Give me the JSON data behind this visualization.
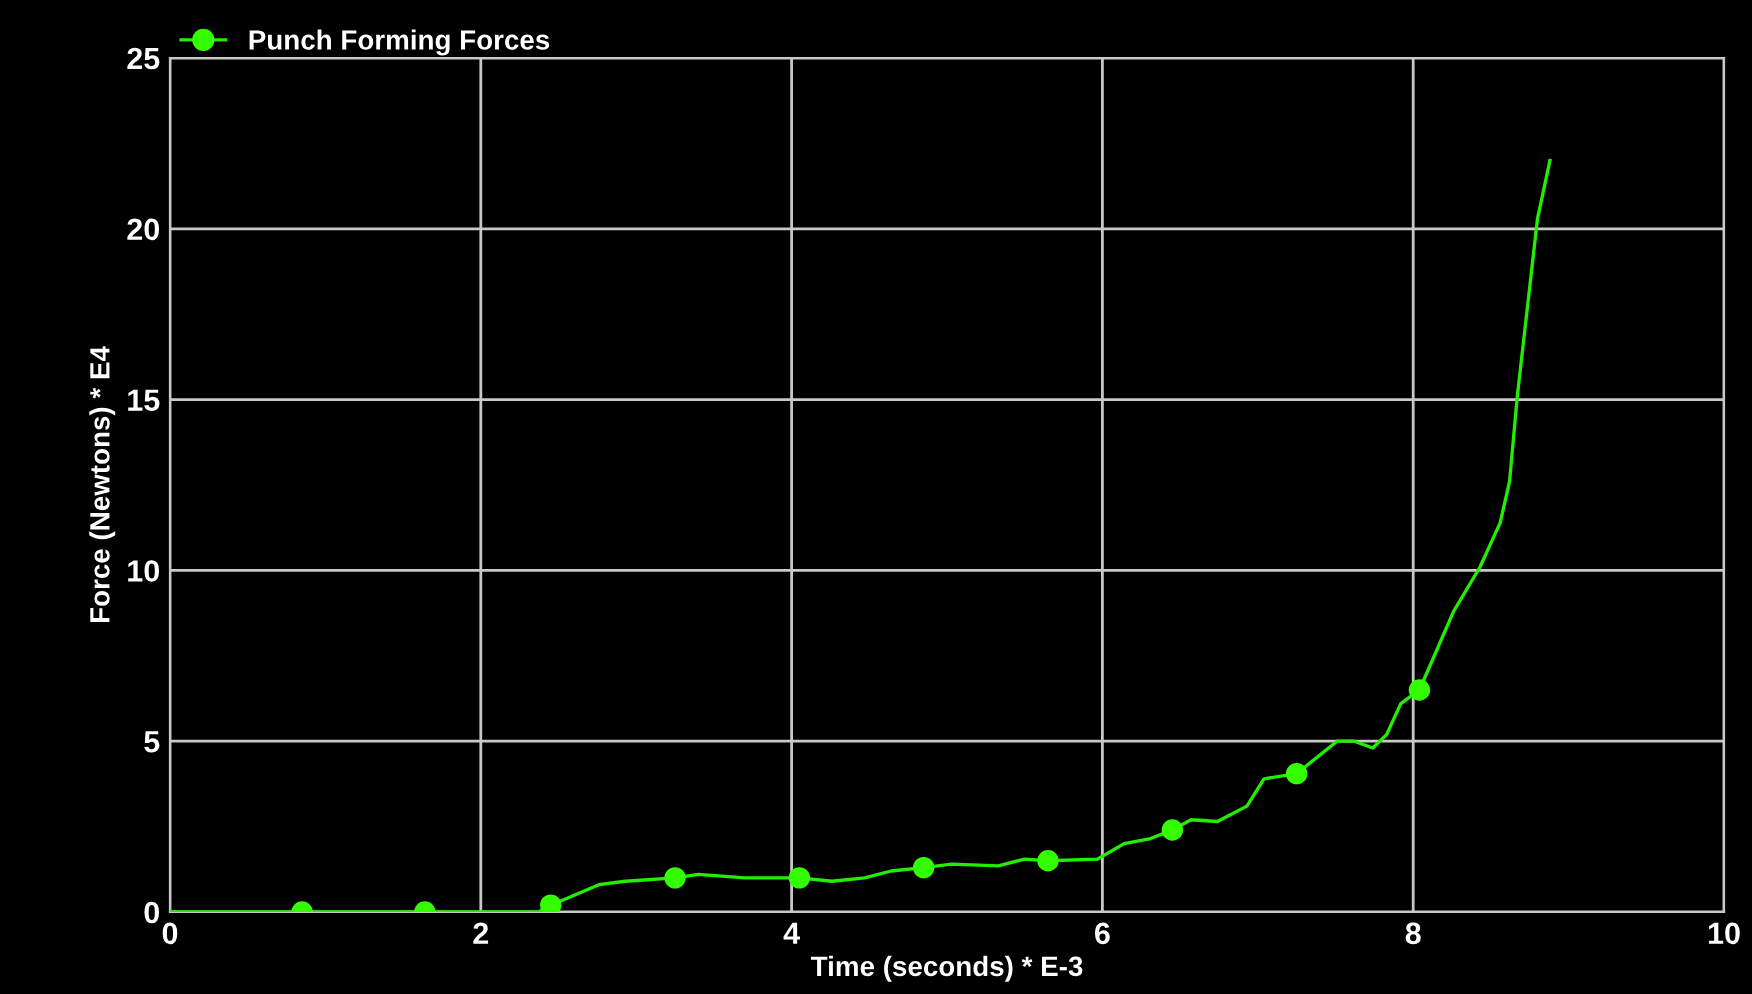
{
  "chart_data": {
    "type": "line",
    "xlabel": "Time (seconds) * E-3",
    "ylabel": "Force (Newtons) * E4",
    "xlim": [
      0,
      10
    ],
    "ylim": [
      0,
      25
    ],
    "xticks": [
      0,
      2,
      4,
      6,
      8,
      10
    ],
    "yticks": [
      0,
      5,
      10,
      15,
      20,
      25
    ],
    "grid": true,
    "legend": "top left",
    "series": [
      {
        "name": "Punch Forming Forces",
        "color": "#22ee00",
        "marker": "none",
        "x": [
          0,
          0.85,
          1.64,
          2.37,
          2.45,
          2.76,
          2.93,
          3.25,
          3.4,
          3.7,
          4.05,
          4.26,
          4.47,
          4.64,
          4.85,
          5.03,
          5.33,
          5.5,
          5.65,
          5.97,
          6.14,
          6.31,
          6.45,
          6.57,
          6.74,
          6.93,
          7.04,
          7.25,
          7.51,
          7.62,
          7.74,
          7.83,
          7.92,
          8.04,
          8.26,
          8.43,
          8.56,
          8.62,
          8.67,
          8.72,
          8.77,
          8.8,
          8.88
        ],
        "values": [
          0,
          0,
          0,
          0,
          0.2,
          0.8,
          0.9,
          1.0,
          1.1,
          1.0,
          1.0,
          0.9,
          1.0,
          1.2,
          1.3,
          1.4,
          1.35,
          1.55,
          1.5,
          1.55,
          2.0,
          2.15,
          2.4,
          2.7,
          2.65,
          3.1,
          3.9,
          4.05,
          5.0,
          5.0,
          4.8,
          5.2,
          6.1,
          6.5,
          8.8,
          10.1,
          11.4,
          12.6,
          15.1,
          17.1,
          19.1,
          20.3,
          22.0
        ]
      },
      {
        "type": "scatter",
        "color": "#33ff00",
        "marker": "circle",
        "x": [
          0.85,
          1.64,
          2.45,
          3.25,
          4.05,
          4.85,
          5.65,
          6.45,
          7.25,
          8.04
        ],
        "values": [
          0,
          0,
          0.2,
          1.0,
          1.0,
          1.3,
          1.5,
          2.4,
          4.05,
          6.5
        ]
      }
    ]
  }
}
